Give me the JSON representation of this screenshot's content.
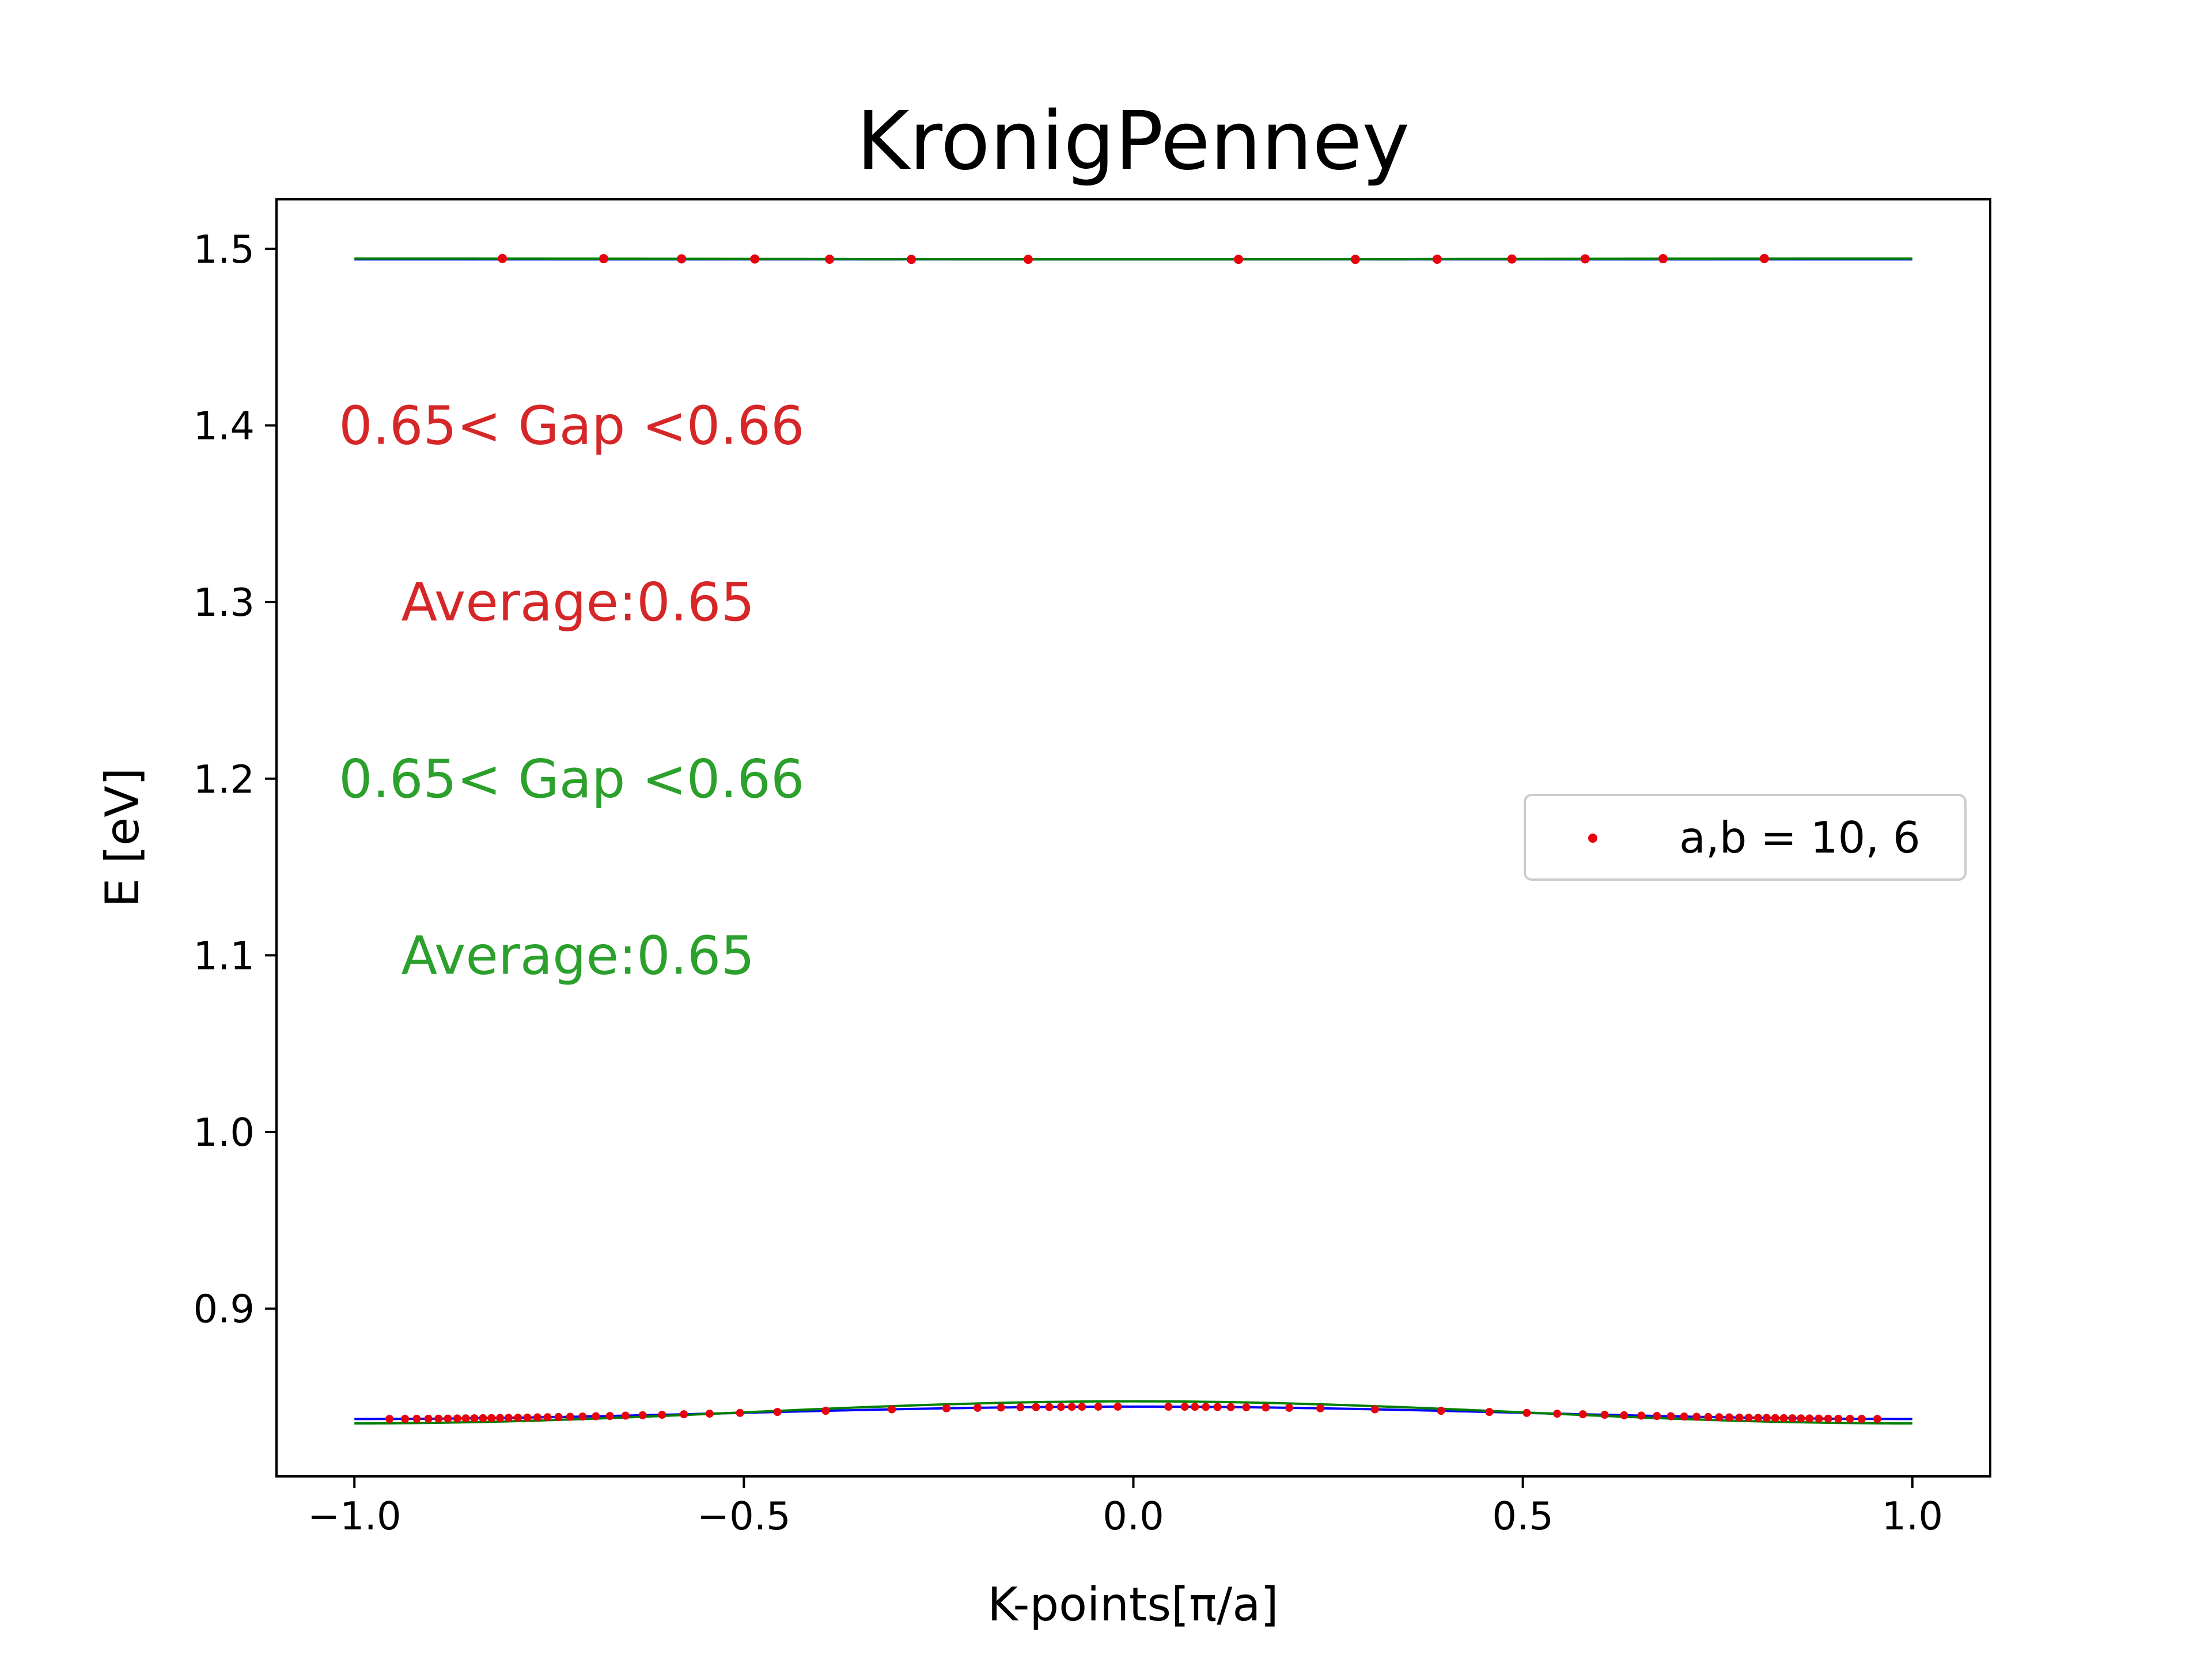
{
  "chart_data": {
    "type": "line",
    "title": "KronigPenney",
    "xlabel": "K-points[π/a]",
    "ylabel": "E [eV]",
    "xlim": [
      -1.1,
      1.1
    ],
    "ylim": [
      0.805,
      1.528
    ],
    "xticks": [
      -1.0,
      -0.5,
      0.0,
      0.5,
      1.0
    ],
    "xtick_labels": [
      "−1.0",
      "−0.5",
      "0.0",
      "0.5",
      "1.0"
    ],
    "yticks": [
      0.9,
      1.0,
      1.1,
      1.2,
      1.3,
      1.4,
      1.5
    ],
    "ytick_labels": [
      "0.9",
      "1.0",
      "1.1",
      "1.2",
      "1.3",
      "1.4",
      "1.5"
    ],
    "grid": false,
    "legend": {
      "placement": "center-right",
      "entries": [
        "a,b = 10, 6"
      ]
    },
    "colors": {
      "points": "#e8000b",
      "blue_line": "#0000ff",
      "green_line": "#008000",
      "annot_red": "#d62728",
      "annot_green": "#2ca02c"
    },
    "scatter_series": {
      "name": "a,b = 10, 6",
      "upper_band": {
        "x": [
          -0.81,
          -0.68,
          -0.58,
          -0.486,
          -0.39,
          -0.285,
          -0.135,
          0.135,
          0.285,
          0.39,
          0.486,
          0.58,
          0.68,
          0.81
        ],
        "y": [
          1.4945,
          1.4944,
          1.4943,
          1.4942,
          1.4941,
          1.494,
          1.494,
          1.494,
          1.494,
          1.4941,
          1.4942,
          1.4943,
          1.4944,
          1.4945
        ]
      },
      "lower_band": {
        "x": [
          -0.955,
          -0.935,
          -0.92,
          -0.905,
          -0.892,
          -0.88,
          -0.868,
          -0.857,
          -0.846,
          -0.835,
          -0.824,
          -0.813,
          -0.802,
          -0.79,
          -0.778,
          -0.765,
          -0.752,
          -0.738,
          -0.723,
          -0.707,
          -0.69,
          -0.672,
          -0.652,
          -0.63,
          -0.605,
          -0.577,
          -0.544,
          -0.505,
          -0.457,
          -0.395,
          -0.31,
          -0.24,
          -0.2,
          -0.17,
          -0.145,
          -0.125,
          -0.108,
          -0.093,
          -0.079,
          -0.066,
          -0.045,
          -0.02,
          0.045,
          0.066,
          0.079,
          0.093,
          0.108,
          0.125,
          0.145,
          0.17,
          0.2,
          0.24,
          0.31,
          0.395,
          0.457,
          0.505,
          0.544,
          0.577,
          0.605,
          0.63,
          0.652,
          0.672,
          0.69,
          0.707,
          0.723,
          0.738,
          0.752,
          0.765,
          0.778,
          0.79,
          0.802,
          0.813,
          0.824,
          0.835,
          0.846,
          0.857,
          0.868,
          0.88,
          0.892,
          0.905,
          0.92,
          0.935,
          0.955
        ],
        "y_model": "cosine",
        "y_min": 0.8375,
        "y_max": 0.8445
      }
    },
    "lines": [
      {
        "color": "blue",
        "upper": {
          "x": [
            -1.0,
            1.0
          ],
          "y": [
            1.494,
            1.494
          ]
        },
        "lower": {
          "x_range": [
            -1.0,
            1.0
          ],
          "y_min": 0.8375,
          "y_max": 0.8445,
          "model": "cosine"
        }
      },
      {
        "color": "green",
        "upper": {
          "x_range": [
            -1.0,
            1.0
          ],
          "y_edge": 1.4945,
          "y_center": 1.494,
          "model": "cosine"
        },
        "lower": {
          "x_range": [
            -1.0,
            1.0
          ],
          "y_min": 0.835,
          "y_max": 0.8475,
          "model": "cosine"
        }
      }
    ],
    "annotations": [
      {
        "text": "0.65< Gap <0.66",
        "x": -1.02,
        "y": 1.4,
        "color": "red"
      },
      {
        "text": "Average:0.65",
        "x": -0.94,
        "y": 1.3,
        "color": "red"
      },
      {
        "text": "0.65< Gap <0.66",
        "x": -1.02,
        "y": 1.2,
        "color": "green"
      },
      {
        "text": "Average:0.65",
        "x": -0.94,
        "y": 1.1,
        "color": "green"
      }
    ]
  }
}
